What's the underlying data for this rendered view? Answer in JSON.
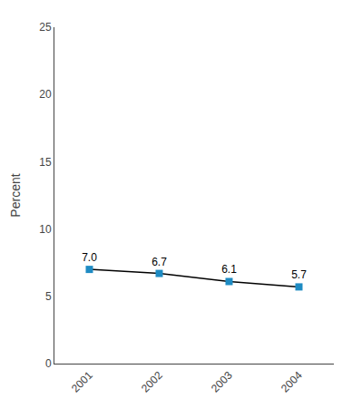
{
  "chart_data": {
    "type": "line",
    "ylabel": "Percent",
    "x": [
      2001,
      2002,
      2003,
      2004
    ],
    "values": [
      7.0,
      6.7,
      6.1,
      5.7
    ],
    "value_labels": [
      "7.0",
      "6.7",
      "6.1",
      "5.7"
    ],
    "data_labels": true,
    "color": "#000000",
    "colors": [
      "#1e8bc3",
      "#1e8bc3",
      "#1e8bc3",
      "#1e8bc3"
    ],
    "marker": "square",
    "xlim": [
      2000.5,
      2004.5
    ],
    "xticks": [
      2001,
      2002,
      2003,
      2004
    ],
    "ylim": [
      0,
      25
    ],
    "yticks": [
      0,
      5,
      10,
      15,
      20,
      25
    ],
    "grid": false
  }
}
